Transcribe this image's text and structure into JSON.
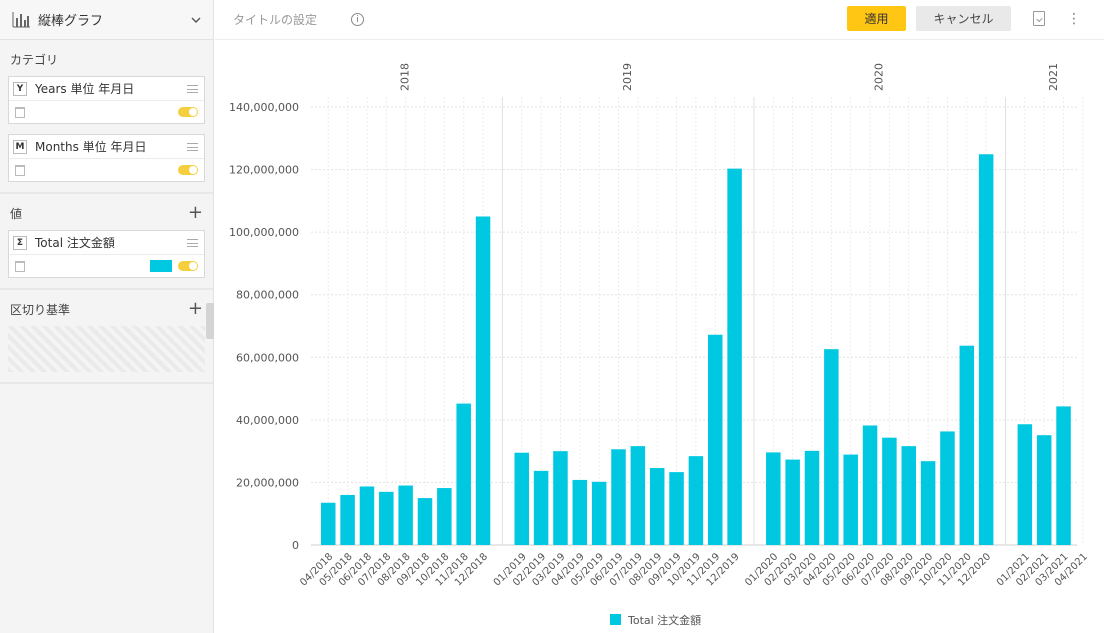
{
  "sidebar": {
    "chart_type": {
      "label": "縦棒グラフ",
      "icon": "bar-chart-icon"
    },
    "category": {
      "title": "カテゴリ",
      "fields": [
        {
          "badge": "Y",
          "name": "Years 単位 年月日"
        },
        {
          "badge": "M",
          "name": "Months 単位 年月日"
        }
      ]
    },
    "values": {
      "title": "値",
      "fields": [
        {
          "badge": "Σ",
          "name": "Total 注文金額",
          "color": "#00c8e1"
        }
      ]
    },
    "breakdown": {
      "title": "区切り基準"
    }
  },
  "header": {
    "title_placeholder": "タイトルの設定",
    "apply_label": "適用",
    "cancel_label": "キャンセル"
  },
  "colors": {
    "bar": "#00c8e1",
    "accent": "#ffc613"
  },
  "chart_data": {
    "type": "bar",
    "y_ticks": [
      "0",
      "20,000,000",
      "40,000,000",
      "60,000,000",
      "80,000,000",
      "100,000,000",
      "120,000,000",
      "140,000,000"
    ],
    "ylim": [
      0,
      140000000
    ],
    "grid": true,
    "legend_position": "bottom-center",
    "groups": [
      {
        "label": "2018",
        "categories": [
          "04/2018",
          "05/2018",
          "06/2018",
          "07/2018",
          "08/2018",
          "09/2018",
          "10/2018",
          "11/2018",
          "12/2018"
        ],
        "values": [
          13500000,
          16000000,
          18700000,
          17000000,
          19000000,
          15000000,
          18200000,
          45200000,
          105000000
        ]
      },
      {
        "label": "2019",
        "categories": [
          "01/2019",
          "02/2019",
          "03/2019",
          "04/2019",
          "05/2019",
          "06/2019",
          "07/2019",
          "08/2019",
          "09/2019",
          "10/2019",
          "11/2019",
          "12/2019"
        ],
        "values": [
          29500000,
          23700000,
          30000000,
          20800000,
          20200000,
          30600000,
          31600000,
          24600000,
          23300000,
          28400000,
          67200000,
          120300000
        ]
      },
      {
        "label": "2020",
        "categories": [
          "01/2020",
          "02/2020",
          "03/2020",
          "04/2020",
          "05/2020",
          "06/2020",
          "07/2020",
          "08/2020",
          "09/2020",
          "10/2020",
          "11/2020",
          "12/2020"
        ],
        "values": [
          29600000,
          27300000,
          30100000,
          62600000,
          28900000,
          38200000,
          34300000,
          31600000,
          26800000,
          36300000,
          63700000,
          124900000
        ]
      },
      {
        "label": "2021",
        "categories": [
          "01/2021",
          "02/2021",
          "03/2021",
          "04/2021"
        ],
        "values": [
          38600000,
          35100000,
          44300000,
          0
        ]
      }
    ],
    "series": [
      {
        "name": "Total 注文金額"
      }
    ]
  }
}
